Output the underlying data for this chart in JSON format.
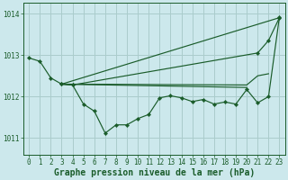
{
  "bg_color": "#cce8ec",
  "grid_color": "#aacccc",
  "line_color": "#1a5c2a",
  "xlim": [
    -0.5,
    23.5
  ],
  "ylim": [
    1010.6,
    1014.25
  ],
  "yticks": [
    1011,
    1012,
    1013,
    1014
  ],
  "xticks": [
    0,
    1,
    2,
    3,
    4,
    5,
    6,
    7,
    8,
    9,
    10,
    11,
    12,
    13,
    14,
    15,
    16,
    17,
    18,
    19,
    20,
    21,
    22,
    23
  ],
  "xlabel": "Graphe pression niveau de la mer (hPa)",
  "line1_x": [
    0,
    1,
    2,
    3,
    4,
    21,
    22,
    23
  ],
  "line1_y": [
    1012.93,
    1012.85,
    1012.45,
    1012.3,
    1012.28,
    1013.05,
    1013.35,
    1013.9
  ],
  "line2_x": [
    3,
    4,
    5,
    6,
    7,
    8,
    9,
    10,
    11,
    12,
    13,
    14,
    15,
    16,
    17,
    18,
    19,
    20,
    21,
    22,
    23
  ],
  "line2_y": [
    1012.3,
    1012.28,
    1011.82,
    1011.65,
    1011.12,
    1011.32,
    1011.32,
    1011.47,
    1011.57,
    1011.97,
    1012.02,
    1011.97,
    1011.88,
    1011.93,
    1011.82,
    1011.87,
    1011.82,
    1012.17,
    1011.85,
    1012.0,
    1013.92
  ],
  "line3_x": [
    3,
    23
  ],
  "line3_y": [
    1012.3,
    1013.9
  ],
  "line4_x": [
    3,
    20,
    21,
    22
  ],
  "line4_y": [
    1012.3,
    1012.28,
    1012.5,
    1012.55
  ],
  "line5_x": [
    3,
    20
  ],
  "line5_y": [
    1012.3,
    1012.22
  ],
  "marker": "D",
  "marker_size": 2.2,
  "tick_fontsize": 5.5,
  "label_fontsize": 7.0,
  "label_fontweight": "bold"
}
